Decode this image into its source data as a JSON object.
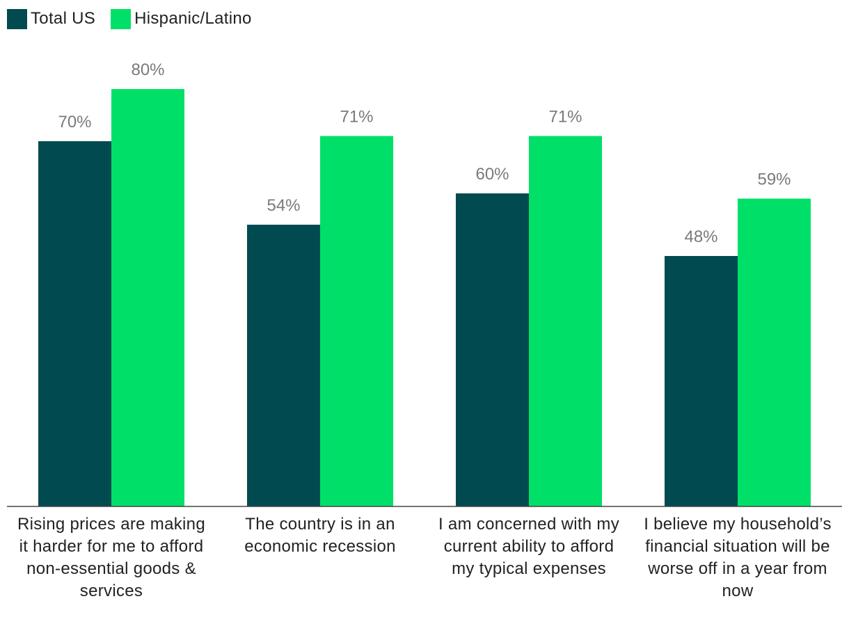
{
  "chart_data": {
    "type": "bar",
    "categories": [
      "Rising prices are making it harder for me to afford non-essential goods & services",
      "The country is in an economic recession",
      "I am concerned with my current ability to afford my typical expenses",
      "I believe my household’s financial situation will be worse off in a year from now"
    ],
    "series": [
      {
        "name": "Total US",
        "color": "#004a50",
        "values": [
          70,
          54,
          60,
          48
        ],
        "labels": [
          "70%",
          "54%",
          "60%",
          "48%"
        ]
      },
      {
        "name": "Hispanic/Latino",
        "color": "#00e068",
        "values": [
          80,
          71,
          71,
          59
        ],
        "labels": [
          "80%",
          "71%",
          "71%",
          "59%"
        ]
      }
    ],
    "ylim": [
      0,
      100
    ],
    "grid": false,
    "legend_position": "top-left"
  }
}
